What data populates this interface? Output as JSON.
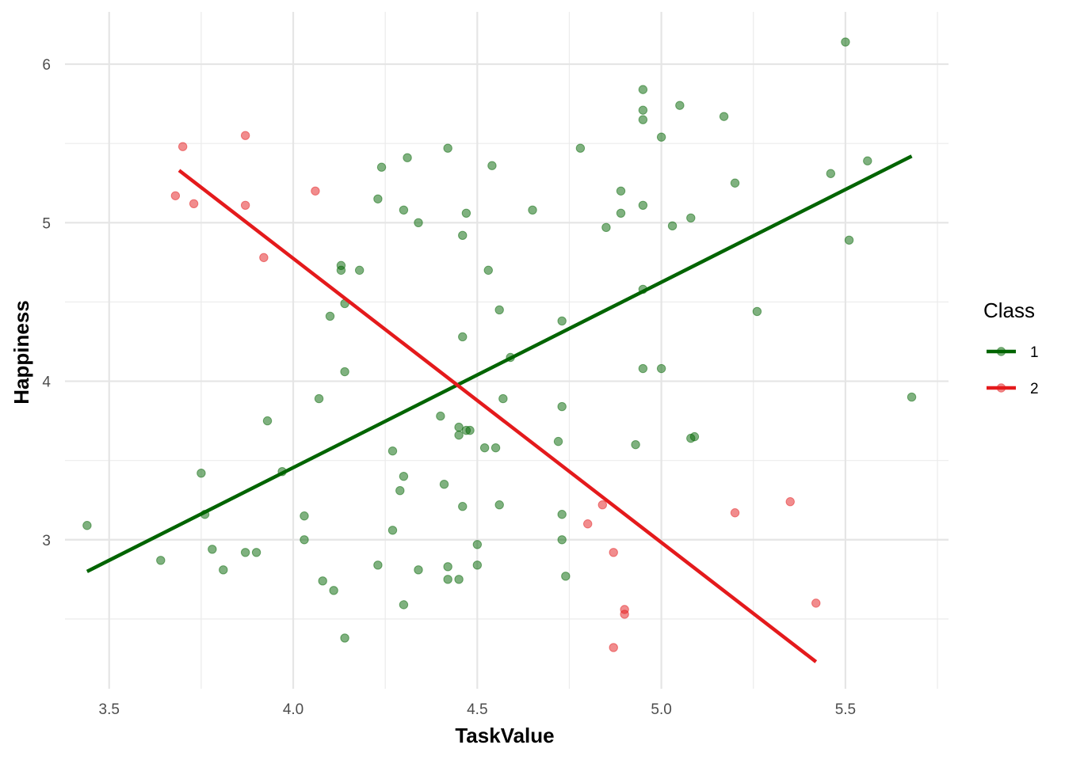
{
  "chart_data": {
    "type": "scatter",
    "title": "",
    "xlabel": "TaskValue",
    "ylabel": "Happiness",
    "xlim": [
      3.38,
      5.78
    ],
    "ylim": [
      2.06,
      6.33
    ],
    "x_ticks": [
      "3.5",
      "4.0",
      "4.5",
      "5.0",
      "5.5"
    ],
    "x_tick_values": [
      3.5,
      4.0,
      4.5,
      5.0,
      5.5
    ],
    "y_ticks": [
      "3",
      "4",
      "5",
      "6"
    ],
    "y_tick_values": [
      3,
      4,
      5,
      6
    ],
    "grid": true,
    "legend": {
      "title": "Class",
      "position": "right"
    },
    "series": [
      {
        "name": "1",
        "color": "#006400",
        "points": [
          [
            3.44,
            3.09
          ],
          [
            3.64,
            2.87
          ],
          [
            3.75,
            3.42
          ],
          [
            3.76,
            3.16
          ],
          [
            3.78,
            2.94
          ],
          [
            3.81,
            2.81
          ],
          [
            3.87,
            2.92
          ],
          [
            3.9,
            2.92
          ],
          [
            3.93,
            3.75
          ],
          [
            3.97,
            3.43
          ],
          [
            4.03,
            3.15
          ],
          [
            4.03,
            3.0
          ],
          [
            4.07,
            3.89
          ],
          [
            4.08,
            2.74
          ],
          [
            4.1,
            4.41
          ],
          [
            4.11,
            2.68
          ],
          [
            4.13,
            4.73
          ],
          [
            4.13,
            4.7
          ],
          [
            4.14,
            4.49
          ],
          [
            4.14,
            2.38
          ],
          [
            4.14,
            4.06
          ],
          [
            4.18,
            4.7
          ],
          [
            4.23,
            5.15
          ],
          [
            4.23,
            2.84
          ],
          [
            4.24,
            5.35
          ],
          [
            4.27,
            3.56
          ],
          [
            4.27,
            3.06
          ],
          [
            4.29,
            3.31
          ],
          [
            4.3,
            5.08
          ],
          [
            4.3,
            3.4
          ],
          [
            4.3,
            2.59
          ],
          [
            4.31,
            5.41
          ],
          [
            4.34,
            5.0
          ],
          [
            4.34,
            2.81
          ],
          [
            4.4,
            3.78
          ],
          [
            4.41,
            3.35
          ],
          [
            4.42,
            5.47
          ],
          [
            4.42,
            2.83
          ],
          [
            4.42,
            2.75
          ],
          [
            4.45,
            3.71
          ],
          [
            4.45,
            3.66
          ],
          [
            4.45,
            2.75
          ],
          [
            4.46,
            4.28
          ],
          [
            4.46,
            3.21
          ],
          [
            4.46,
            4.92
          ],
          [
            4.47,
            5.06
          ],
          [
            4.47,
            3.69
          ],
          [
            4.48,
            3.69
          ],
          [
            4.5,
            2.97
          ],
          [
            4.5,
            2.84
          ],
          [
            4.52,
            3.58
          ],
          [
            4.53,
            4.7
          ],
          [
            4.54,
            5.36
          ],
          [
            4.55,
            3.58
          ],
          [
            4.56,
            4.45
          ],
          [
            4.56,
            3.22
          ],
          [
            4.57,
            3.89
          ],
          [
            4.59,
            4.15
          ],
          [
            4.65,
            5.08
          ],
          [
            4.72,
            3.62
          ],
          [
            4.73,
            4.38
          ],
          [
            4.73,
            3.84
          ],
          [
            4.73,
            3.16
          ],
          [
            4.73,
            3.0
          ],
          [
            4.74,
            2.77
          ],
          [
            4.78,
            5.47
          ],
          [
            4.85,
            4.97
          ],
          [
            4.89,
            5.2
          ],
          [
            4.89,
            5.06
          ],
          [
            4.93,
            3.6
          ],
          [
            4.95,
            5.84
          ],
          [
            4.95,
            5.71
          ],
          [
            4.95,
            5.65
          ],
          [
            4.95,
            5.11
          ],
          [
            4.95,
            4.58
          ],
          [
            4.95,
            4.08
          ],
          [
            5.0,
            5.54
          ],
          [
            5.0,
            4.08
          ],
          [
            5.03,
            4.98
          ],
          [
            5.05,
            5.74
          ],
          [
            5.08,
            5.03
          ],
          [
            5.08,
            3.64
          ],
          [
            5.09,
            3.65
          ],
          [
            5.17,
            5.67
          ],
          [
            5.2,
            5.25
          ],
          [
            5.26,
            4.44
          ],
          [
            5.46,
            5.31
          ],
          [
            5.5,
            6.14
          ],
          [
            5.51,
            4.89
          ],
          [
            5.56,
            5.39
          ],
          [
            5.68,
            3.9
          ]
        ],
        "trend": [
          [
            3.44,
            2.8
          ],
          [
            5.68,
            5.42
          ]
        ]
      },
      {
        "name": "2",
        "color": "#E41A1C",
        "points": [
          [
            3.68,
            5.17
          ],
          [
            3.7,
            5.48
          ],
          [
            3.73,
            5.12
          ],
          [
            3.87,
            5.11
          ],
          [
            3.87,
            5.55
          ],
          [
            3.92,
            4.78
          ],
          [
            4.06,
            5.2
          ],
          [
            4.8,
            3.1
          ],
          [
            4.84,
            3.22
          ],
          [
            4.87,
            2.92
          ],
          [
            4.87,
            2.32
          ],
          [
            4.9,
            2.56
          ],
          [
            4.9,
            2.53
          ],
          [
            5.2,
            3.17
          ],
          [
            5.35,
            3.24
          ],
          [
            5.42,
            2.6
          ]
        ],
        "trend": [
          [
            3.69,
            5.33
          ],
          [
            5.42,
            2.23
          ]
        ]
      }
    ]
  }
}
